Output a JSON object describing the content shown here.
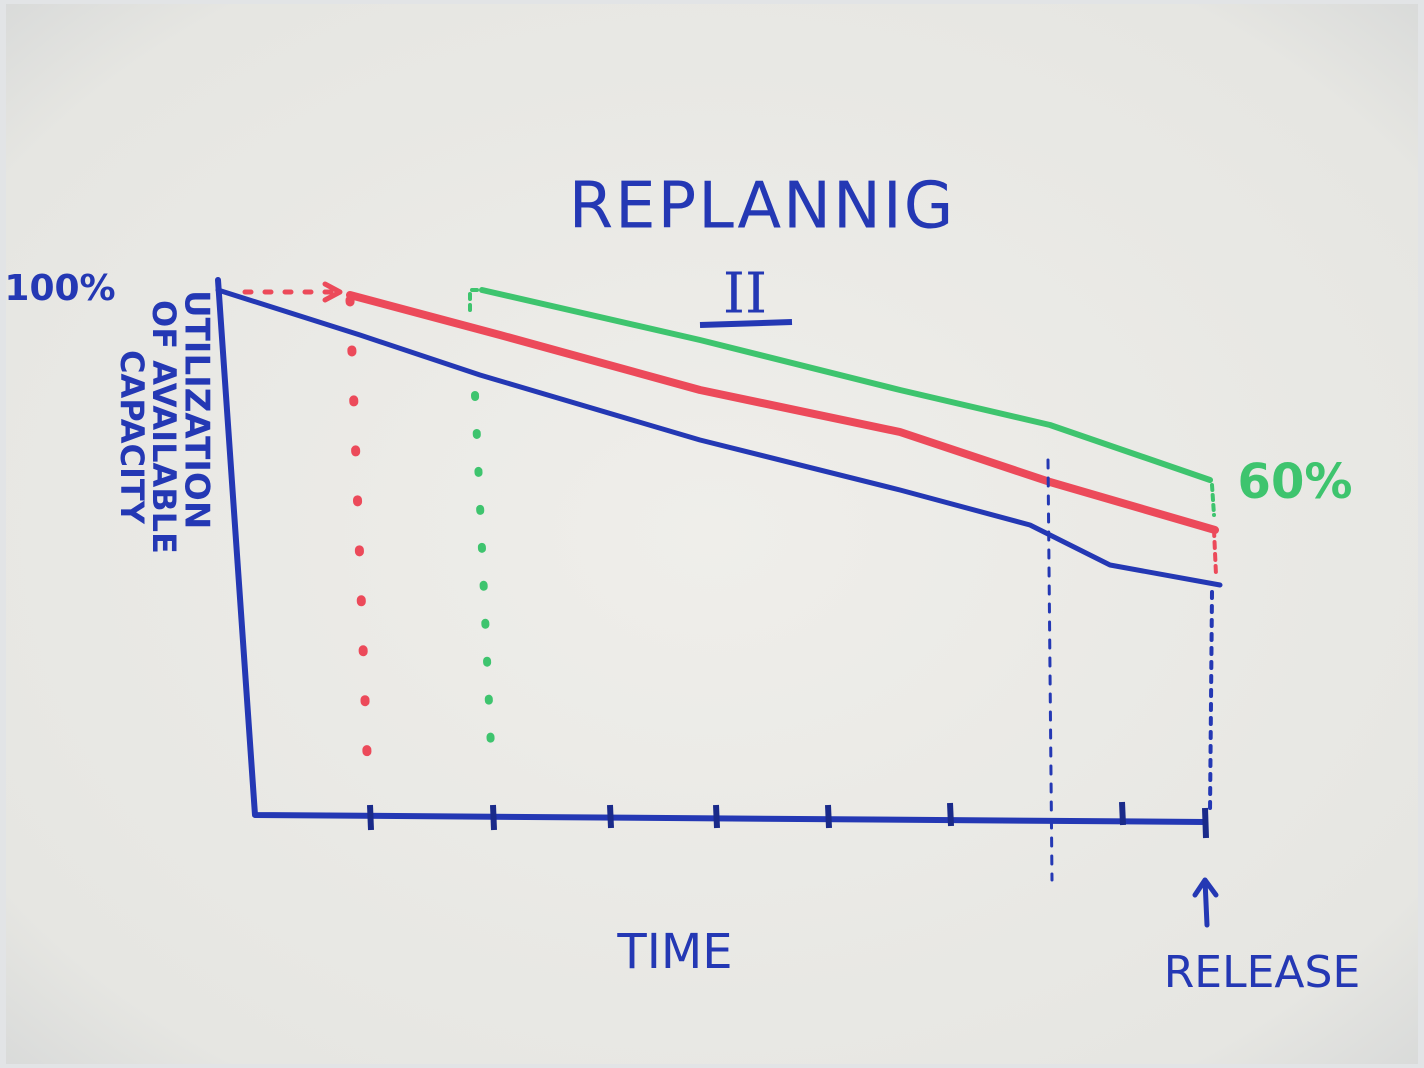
{
  "title": "REPLANNIG",
  "subtitle": "II",
  "y_axis": {
    "top_label": "100%",
    "label": [
      "UTILIZATION",
      "OF AVAILABLE",
      "CAPACITY"
    ]
  },
  "end_label": "60%",
  "x_axis": {
    "label": "TIME",
    "end_label": "RELEASE"
  }
}
